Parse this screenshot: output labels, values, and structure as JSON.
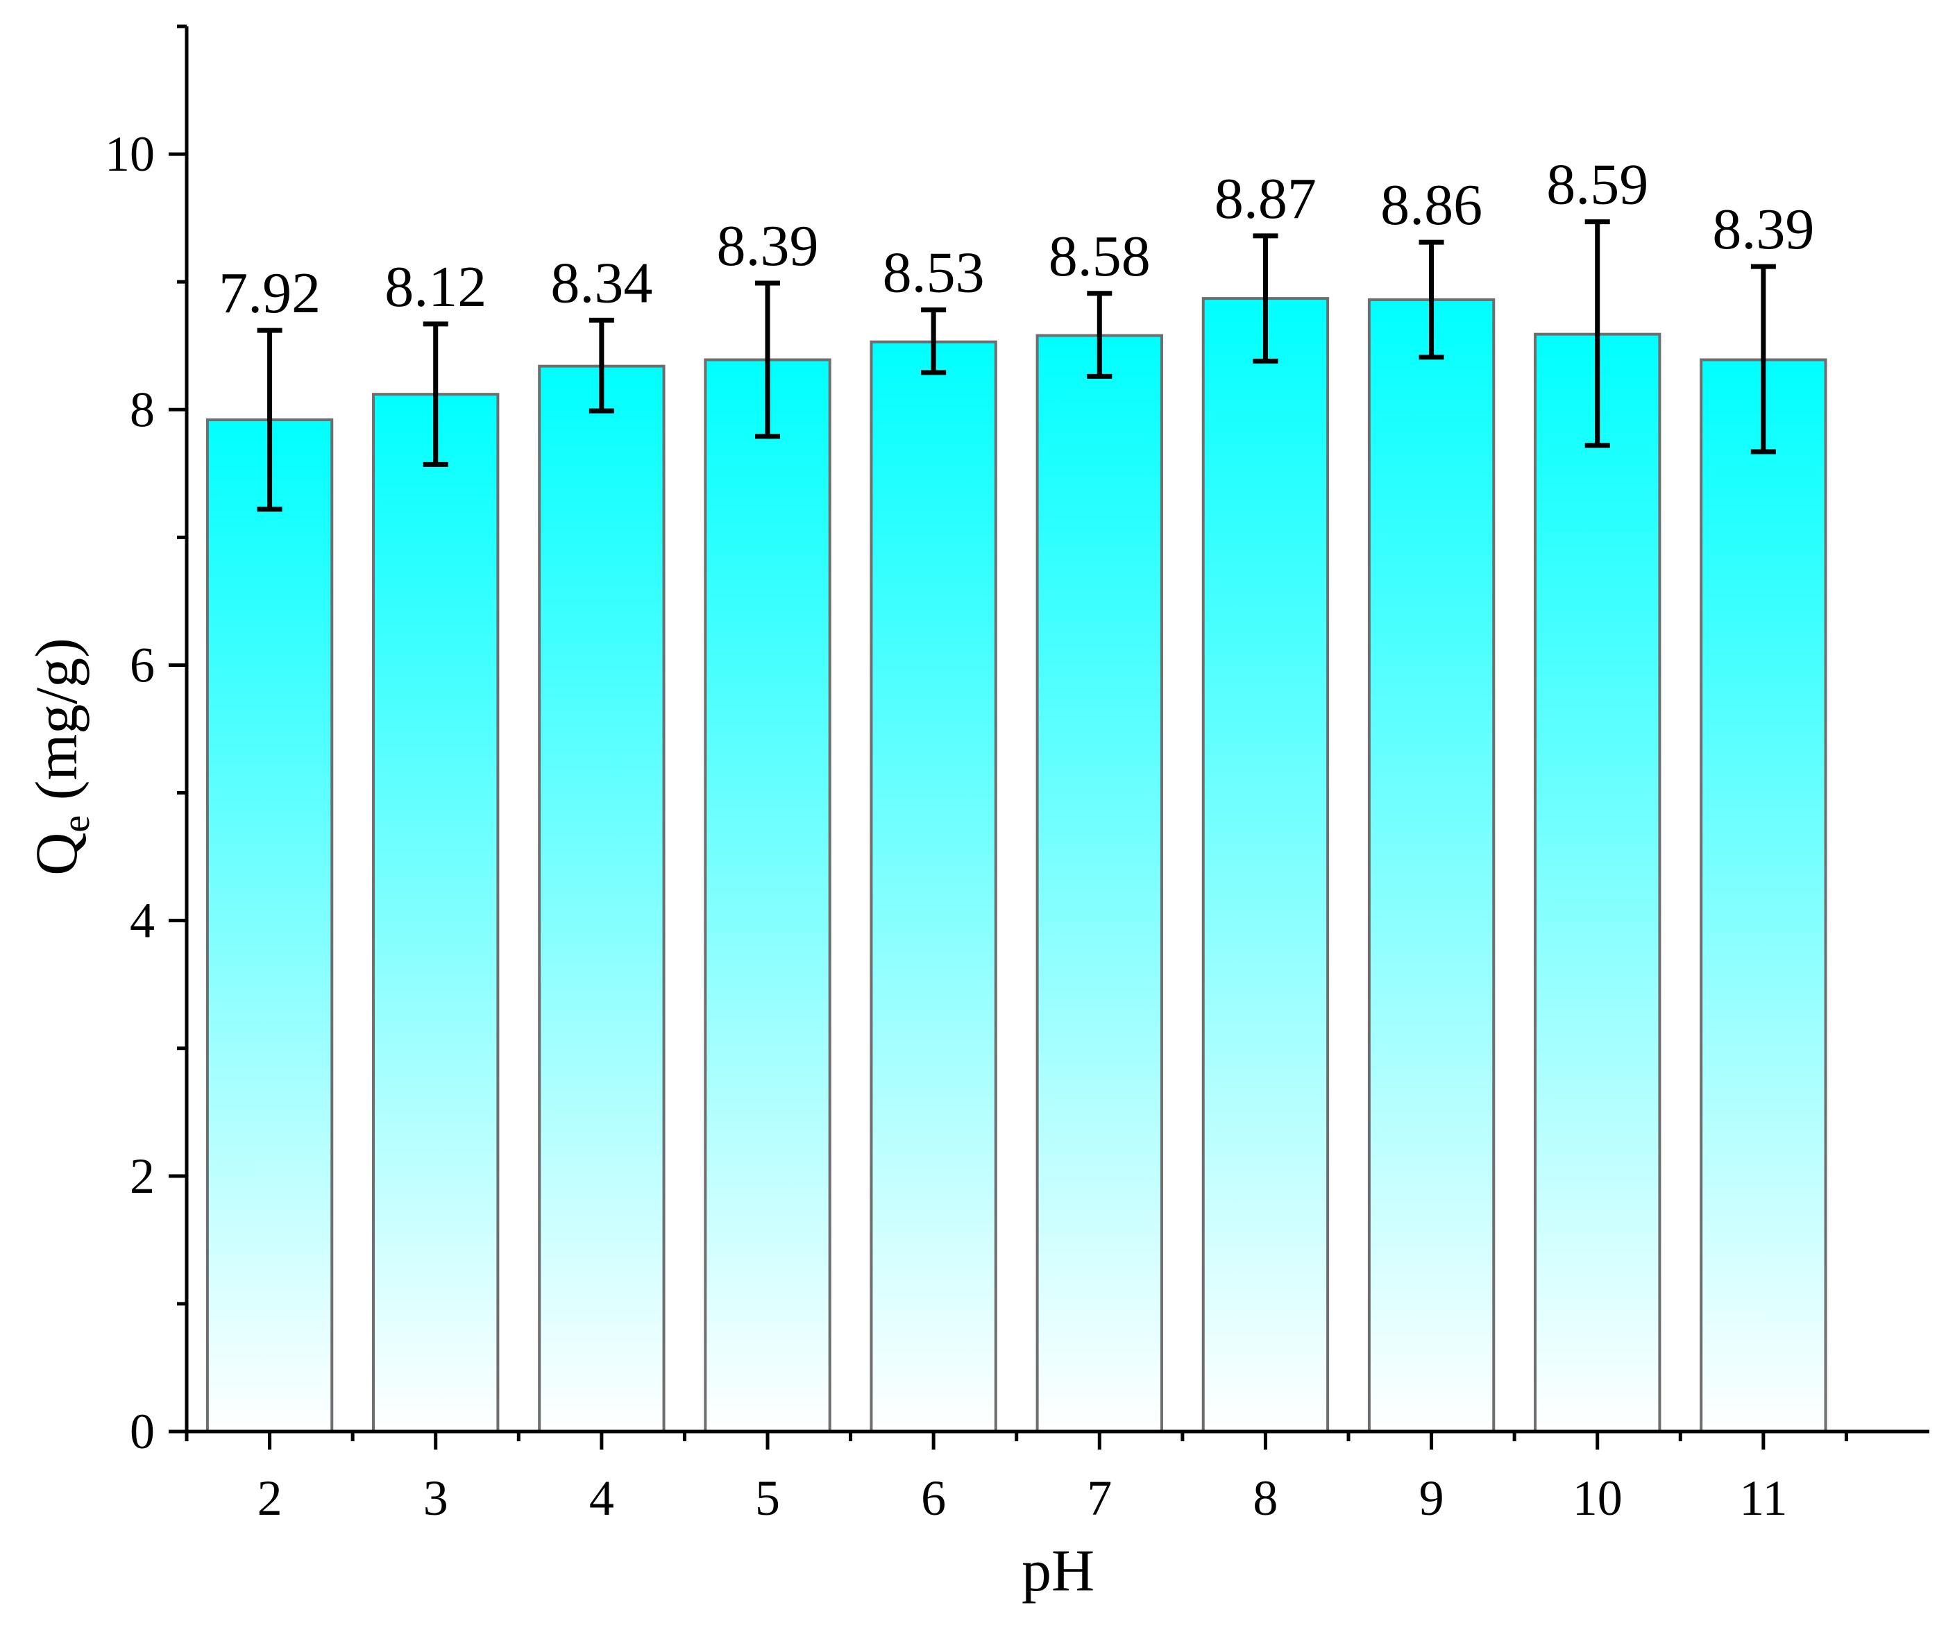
{
  "chart_data": {
    "type": "bar",
    "xlabel": "pH",
    "ylabel": {
      "main": "Q",
      "sub": "e",
      "unit": " (mg/g)"
    },
    "categories": [
      "2",
      "3",
      "4",
      "5",
      "6",
      "7",
      "8",
      "9",
      "10",
      "11"
    ],
    "values": [
      7.92,
      8.12,
      8.34,
      8.39,
      8.53,
      8.58,
      8.87,
      8.86,
      8.59,
      8.39
    ],
    "data_labels": [
      "7.92",
      "8.12",
      "8.34",
      "8.39",
      "8.53",
      "8.58",
      "8.87",
      "8.86",
      "8.59",
      "8.39"
    ],
    "error_low": [
      7.22,
      7.57,
      7.99,
      7.79,
      8.29,
      8.26,
      8.38,
      8.41,
      7.72,
      7.67
    ],
    "error_high": [
      8.62,
      8.67,
      8.7,
      8.99,
      8.78,
      8.91,
      9.36,
      9.31,
      9.47,
      9.12
    ],
    "ylim": [
      0,
      11
    ],
    "yticks": [
      0,
      2,
      4,
      6,
      8,
      10
    ],
    "ytick_labels": [
      "0",
      "2",
      "4",
      "6",
      "8",
      "10"
    ],
    "minor_ytick_step": 1,
    "grid": false,
    "legend": "none",
    "colors": {
      "bar_top": "#00ffff",
      "bar_bottom": "#ffffff",
      "bar_edge": "#6e6e6e",
      "axis": "#000000",
      "error_bar": "#000000"
    }
  }
}
